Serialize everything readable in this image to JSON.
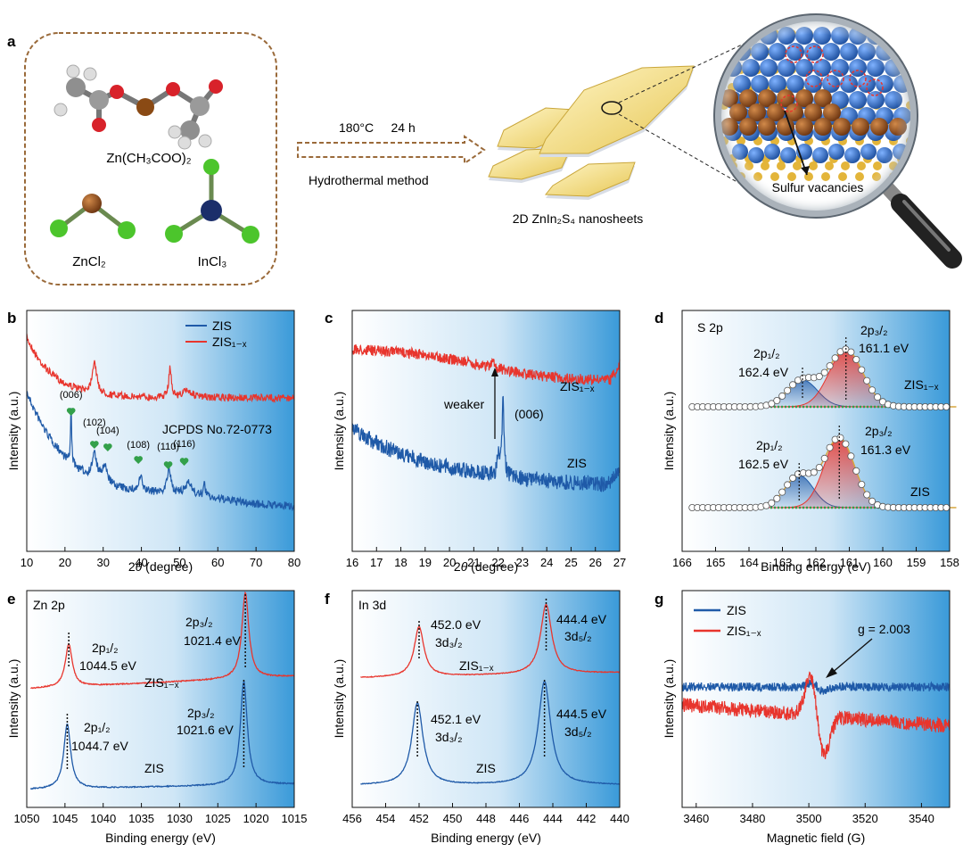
{
  "colors": {
    "blue": "#1f5aa8",
    "red": "#e8352d",
    "green": "#33a04a",
    "panel_light": "#ffffff",
    "panel_dark": "#3a9ad9",
    "frame": "#9a6a3a"
  },
  "panel_a": {
    "letter": "a",
    "zn_acetate": "Zn(CH₃COO)₂",
    "zncl2": "ZnCl₂",
    "incl3": "InCl₃",
    "conditions": "180°C     24 h",
    "method": "Hydrothermal method",
    "product": "2D ZnIn₂S₄ nanosheets",
    "vacancy_label": "Sulfur vacancies"
  },
  "panel_b": {
    "letter": "b",
    "legend": [
      "ZIS",
      "ZIS₁₋ₓ"
    ],
    "jcpds": "JCPDS No.72-0773",
    "peaks": [
      "(006)",
      "(102)",
      "(104)",
      "(108)",
      "(110)",
      "(116)"
    ],
    "xlabel_pre": "2",
    "xlabel_theta": "θ",
    "xlabel_post": " (degree)",
    "ylabel": "Intensity (a.u.)",
    "ticks": [
      "10",
      "20",
      "30",
      "40",
      "50",
      "60",
      "70",
      "80"
    ]
  },
  "panel_c": {
    "letter": "c",
    "zis1x": "ZIS₁₋ₓ",
    "zis": "ZIS",
    "weaker": "weaker",
    "peak": "(006)",
    "xlabel_pre": "2",
    "xlabel_theta": "θ",
    "xlabel_post": " (degree)",
    "ylabel": "Intensity (a.u.)",
    "ticks": [
      "16",
      "17",
      "18",
      "19",
      "20",
      "21",
      "22",
      "23",
      "24",
      "25",
      "26",
      "27"
    ]
  },
  "panel_d": {
    "letter": "d",
    "title": "S 2p",
    "top_p12": "2p₁/₂",
    "top_p12_ev": "162.4 eV",
    "top_p32": "2p₃/₂",
    "top_p32_ev": "161.1 eV",
    "top_label": "ZIS₁₋ₓ",
    "bot_p12": "2p₁/₂",
    "bot_p12_ev": "162.5 eV",
    "bot_p32": "2p₃/₂",
    "bot_p32_ev": "161.3 eV",
    "bot_label": "ZIS",
    "xlabel": "Binding energy (eV)",
    "ylabel": "Intensity (a.u.)",
    "ticks": [
      "166",
      "165",
      "164",
      "163",
      "162",
      "161",
      "160",
      "159",
      "158"
    ]
  },
  "panel_e": {
    "letter": "e",
    "title": "Zn 2p",
    "top_p12": "2p₁/₂",
    "top_p12_ev": "1044.5 eV",
    "top_p32": "2p₃/₂",
    "top_p32_ev": "1021.4 eV",
    "top_label": "ZIS₁₋ₓ",
    "bot_p12": "2p₁/₂",
    "bot_p12_ev": "1044.7 eV",
    "bot_p32": "2p₃/₂",
    "bot_p32_ev": "1021.6 eV",
    "bot_label": "ZIS",
    "xlabel": "Binding energy (eV)",
    "ylabel": "Intensity (a.u.)",
    "ticks": [
      "1050",
      "1045",
      "1040",
      "1035",
      "1030",
      "1025",
      "1020",
      "1015"
    ]
  },
  "panel_f": {
    "letter": "f",
    "title": "In 3d",
    "top_a_ev": "452.0 eV",
    "top_a_orb": "3d₃/₂",
    "top_b_ev": "444.4 eV",
    "top_b_orb": "3d₅/₂",
    "top_label": "ZIS₁₋ₓ",
    "bot_a_ev": "452.1 eV",
    "bot_a_orb": "3d₃/₂",
    "bot_b_ev": "444.5 eV",
    "bot_b_orb": "3d₅/₂",
    "bot_label": "ZIS",
    "xlabel": "Binding energy (eV)",
    "ylabel": "Intensity (a.u.)",
    "ticks": [
      "456",
      "454",
      "452",
      "450",
      "448",
      "446",
      "444",
      "442",
      "440"
    ]
  },
  "panel_g": {
    "letter": "g",
    "legend": [
      "ZIS",
      "ZIS₁₋ₓ"
    ],
    "gvalue": "g = 2.003",
    "xlabel": "Magnetic field (G)",
    "ylabel": "Intensity (a.u.)",
    "ticks": [
      "3460",
      "3480",
      "3500",
      "3520",
      "3540"
    ]
  },
  "chart_data": [
    {
      "type": "line",
      "panel": "b",
      "x_range": [
        10,
        80
      ],
      "series": [
        {
          "name": "ZIS",
          "peaks_2theta": [
            21.6,
            27.7,
            30.4,
            39.8,
            47.2,
            52.4
          ]
        },
        {
          "name": "ZIS1-x",
          "peaks_2theta": [
            27.7,
            47.5
          ]
        }
      ]
    },
    {
      "type": "line",
      "panel": "c",
      "x_range": [
        16,
        27
      ],
      "series": [
        {
          "name": "ZIS",
          "peak_2theta": 22.2
        },
        {
          "name": "ZIS1-x",
          "peak_2theta": 21.8
        }
      ]
    },
    {
      "type": "line",
      "panel": "d",
      "x_range": [
        166,
        158
      ],
      "series": [
        {
          "name": "ZIS1-x",
          "peaks_eV": [
            162.4,
            161.1
          ]
        },
        {
          "name": "ZIS",
          "peaks_eV": [
            162.5,
            161.3
          ]
        }
      ]
    },
    {
      "type": "line",
      "panel": "e",
      "x_range": [
        1050,
        1015
      ],
      "series": [
        {
          "name": "ZIS1-x",
          "peaks_eV": [
            1044.5,
            1021.4
          ]
        },
        {
          "name": "ZIS",
          "peaks_eV": [
            1044.7,
            1021.6
          ]
        }
      ]
    },
    {
      "type": "line",
      "panel": "f",
      "x_range": [
        456,
        440
      ],
      "series": [
        {
          "name": "ZIS1-x",
          "peaks_eV": [
            452.0,
            444.4
          ]
        },
        {
          "name": "ZIS",
          "peaks_eV": [
            452.1,
            444.5
          ]
        }
      ]
    },
    {
      "type": "line",
      "panel": "g",
      "x_range": [
        3455,
        3550
      ],
      "series": [
        {
          "name": "ZIS",
          "center_G": 3503
        },
        {
          "name": "ZIS1-x",
          "center_G": 3503
        }
      ],
      "g_value": 2.003
    }
  ]
}
